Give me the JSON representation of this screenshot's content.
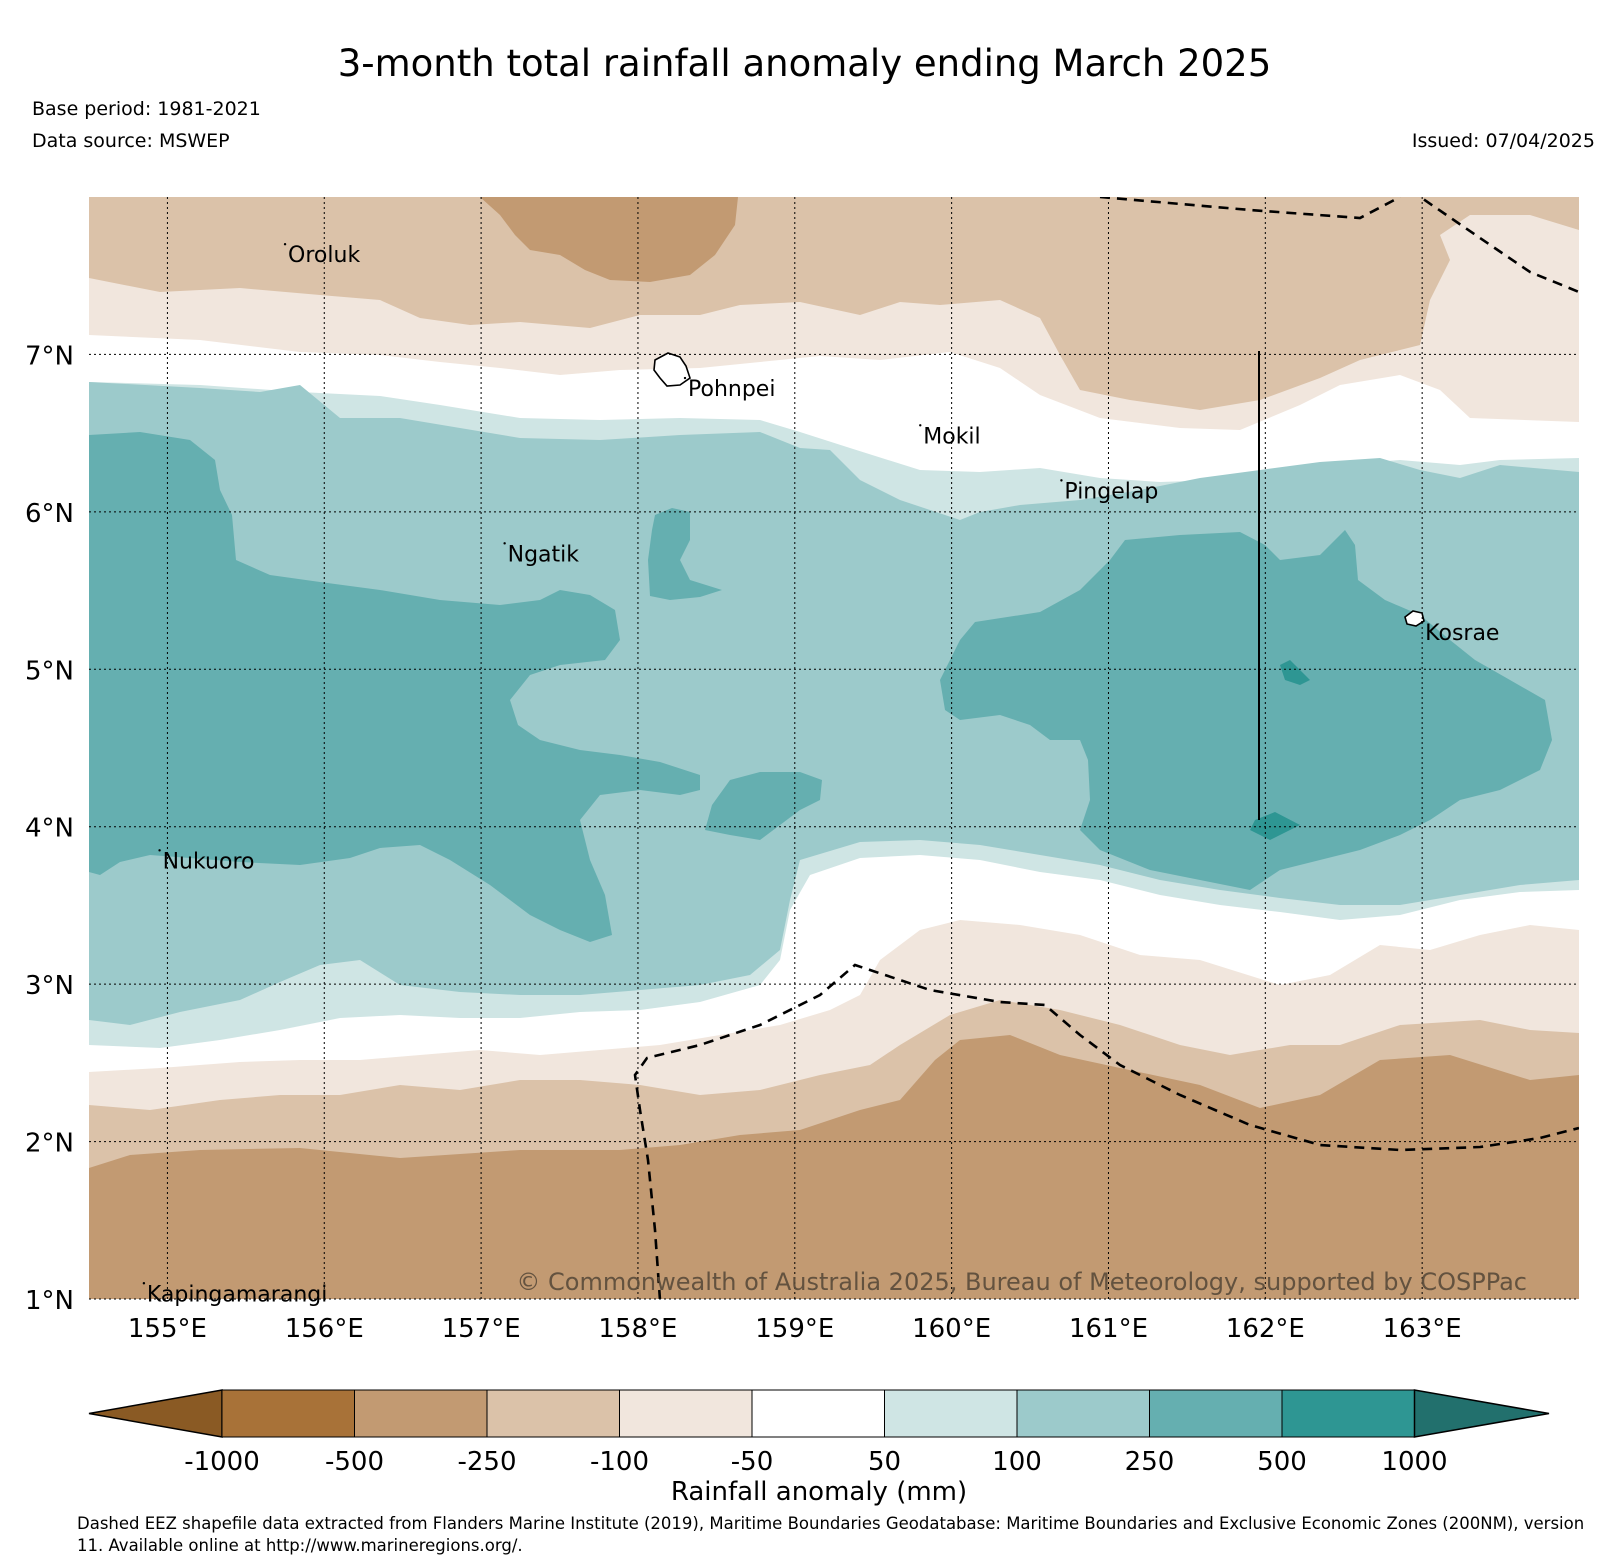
{
  "title": "3-month total rainfall anomaly ending March 2025",
  "base_period": "Base period: 1981-2021",
  "data_source": "Data source: MSWEP",
  "issued": "Issued: 07/04/2025",
  "copyright": "© Commonwealth of Australia 2025, Bureau of Meteorology, supported by COSPPac",
  "footnote": "Dashed EEZ shapefile data extracted from Flanders Marine Institute (2019), Maritime Boundaries Geodatabase: Maritime Boundaries and Exclusive Economic Zones (200NM), version 11. Available online at http://www.marineregions.org/.",
  "map": {
    "lon_range": [
      154.5,
      164.0
    ],
    "lat_range": [
      1.0,
      8.0
    ],
    "lon_ticks": [
      155,
      156,
      157,
      158,
      159,
      160,
      161,
      162,
      163
    ],
    "lon_tick_labels": [
      "155°E",
      "156°E",
      "157°E",
      "158°E",
      "159°E",
      "160°E",
      "161°E",
      "162°E",
      "163°E"
    ],
    "lat_ticks": [
      1,
      2,
      3,
      4,
      5,
      6,
      7
    ],
    "lat_tick_labels": [
      "1°N",
      "2°N",
      "3°N",
      "4°N",
      "5°N",
      "6°N",
      "7°N"
    ],
    "gridlines": true,
    "places": [
      {
        "name": "Oroluk",
        "lon": 155.75,
        "lat": 7.7
      },
      {
        "name": "Pohnpei",
        "lon": 158.3,
        "lat": 6.85
      },
      {
        "name": "Mokil",
        "lon": 159.8,
        "lat": 6.55
      },
      {
        "name": "Pingelap",
        "lon": 160.7,
        "lat": 6.2
      },
      {
        "name": "Ngatik",
        "lon": 157.15,
        "lat": 5.8
      },
      {
        "name": "Kosrae",
        "lon": 163.0,
        "lat": 5.3
      },
      {
        "name": "Nukuoro",
        "lon": 154.95,
        "lat": 3.85
      },
      {
        "name": "Kapingamarangi",
        "lon": 154.85,
        "lat": 1.1
      }
    ]
  },
  "colorbar": {
    "label": "Rainfall anomaly (mm)",
    "tick_labels": [
      "-1000",
      "-500",
      "-250",
      "-100",
      "-50",
      "50",
      "100",
      "250",
      "500",
      "1000"
    ],
    "colors": [
      "#8a5a24",
      "#a87238",
      "#c29a72",
      "#dbc2a9",
      "#f1e6dd",
      "#ffffff",
      "#cfe5e4",
      "#9ccacb",
      "#65afb0",
      "#2e9693",
      "#22706d"
    ],
    "extend": "both"
  },
  "colors": {
    "dry_strong": "#c29a72",
    "dry_moderate": "#dbc2a9",
    "dry_weak": "#f1e6dd",
    "neutral": "#ffffff",
    "wet_weak": "#cfe5e4",
    "wet_moderate": "#9ccacb",
    "wet_strong": "#65afb0",
    "wet_very_strong": "#2e9693"
  }
}
